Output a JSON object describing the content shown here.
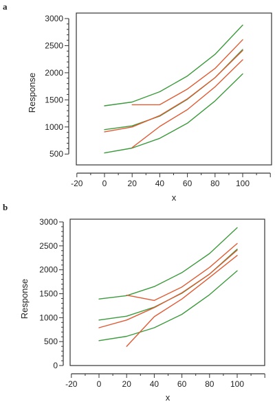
{
  "chart_data": [
    {
      "panel": "a",
      "type": "line",
      "xlabel": "x",
      "ylabel": "Response",
      "xlim": [
        -20,
        120
      ],
      "ylim": [
        300,
        3050
      ],
      "xticks": [
        -20,
        0,
        20,
        40,
        60,
        80,
        100
      ],
      "yticks": [
        500,
        1000,
        1500,
        2000,
        2500,
        3000
      ],
      "grid": false,
      "legend": "none",
      "series": [
        {
          "color": "#3a9a3a",
          "x": [
            0,
            20,
            40,
            60,
            80,
            100
          ],
          "y": [
            1390,
            1460,
            1650,
            1940,
            2340,
            2880
          ]
        },
        {
          "color": "#3a9a3a",
          "x": [
            0,
            20,
            40,
            60,
            80,
            100
          ],
          "y": [
            950,
            1020,
            1200,
            1510,
            1910,
            2430
          ]
        },
        {
          "color": "#3a9a3a",
          "x": [
            0,
            20,
            40,
            60,
            80,
            100
          ],
          "y": [
            520,
            610,
            790,
            1070,
            1480,
            1980
          ]
        },
        {
          "color": "#e05a32",
          "x": [
            20,
            40,
            60,
            80,
            100
          ],
          "y": [
            1410,
            1410,
            1700,
            2080,
            2610
          ]
        },
        {
          "color": "#e05a32",
          "x": [
            0,
            20,
            40,
            60,
            80,
            100
          ],
          "y": [
            910,
            1000,
            1210,
            1520,
            1910,
            2410
          ]
        },
        {
          "color": "#e05a32",
          "x": [
            20,
            40,
            60,
            80,
            100
          ],
          "y": [
            620,
            1010,
            1320,
            1740,
            2240
          ]
        }
      ]
    },
    {
      "panel": "b",
      "type": "line",
      "xlabel": "x",
      "ylabel": "Response",
      "xlim": [
        -20,
        120
      ],
      "ylim": [
        0,
        3050
      ],
      "xticks": [
        -20,
        0,
        20,
        40,
        60,
        80,
        100
      ],
      "yticks": [
        0,
        500,
        1000,
        1500,
        2000,
        2500,
        3000
      ],
      "grid": false,
      "legend": "none",
      "series": [
        {
          "color": "#3a9a3a",
          "x": [
            0,
            20,
            40,
            60,
            80,
            100
          ],
          "y": [
            1390,
            1460,
            1650,
            1940,
            2340,
            2880
          ]
        },
        {
          "color": "#3a9a3a",
          "x": [
            0,
            20,
            40,
            60,
            80,
            100
          ],
          "y": [
            950,
            1030,
            1220,
            1510,
            1910,
            2430
          ]
        },
        {
          "color": "#3a9a3a",
          "x": [
            0,
            20,
            40,
            60,
            80,
            100
          ],
          "y": [
            520,
            610,
            790,
            1070,
            1480,
            1980
          ]
        },
        {
          "color": "#e05a32",
          "x": [
            20,
            40,
            60,
            80,
            100
          ],
          "y": [
            1470,
            1360,
            1640,
            2050,
            2550
          ]
        },
        {
          "color": "#e05a32",
          "x": [
            0,
            20,
            40,
            60,
            80,
            100
          ],
          "y": [
            790,
            950,
            1210,
            1520,
            1910,
            2410
          ]
        },
        {
          "color": "#e05a32",
          "x": [
            20,
            40,
            60,
            80,
            100
          ],
          "y": [
            400,
            1020,
            1390,
            1840,
            2300
          ]
        }
      ]
    }
  ]
}
